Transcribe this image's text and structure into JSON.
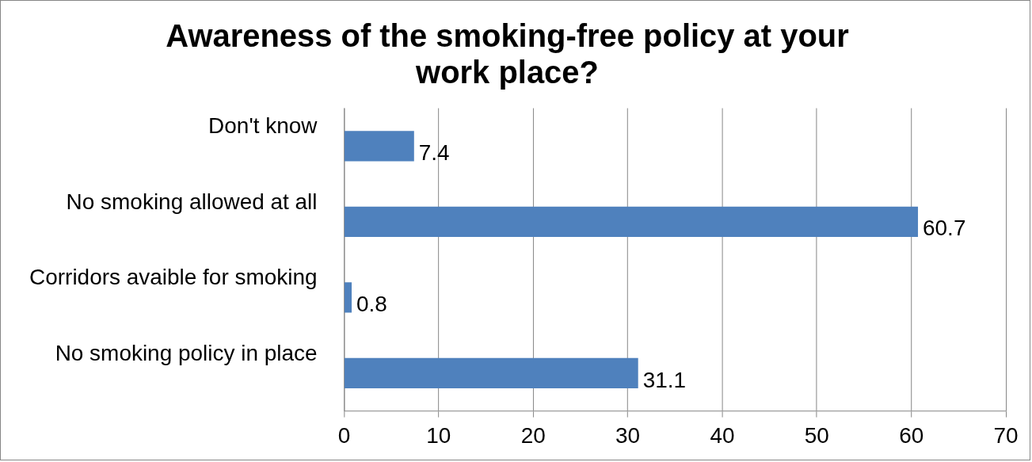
{
  "chart_data": {
    "type": "bar",
    "orientation": "horizontal",
    "title": "Awareness of the smoking-free policy at your work place?",
    "categories": [
      "Don't know",
      "No smoking allowed at all",
      "Corridors avaible for smoking",
      "No smoking policy in place"
    ],
    "values": [
      7.4,
      60.7,
      0.8,
      31.1
    ],
    "color": "#4f81bd",
    "xlim": [
      0,
      70
    ],
    "xticks": [
      0,
      10,
      20,
      30,
      40,
      50,
      60,
      70
    ],
    "grid": "x",
    "legend": false,
    "data_labels": true
  }
}
